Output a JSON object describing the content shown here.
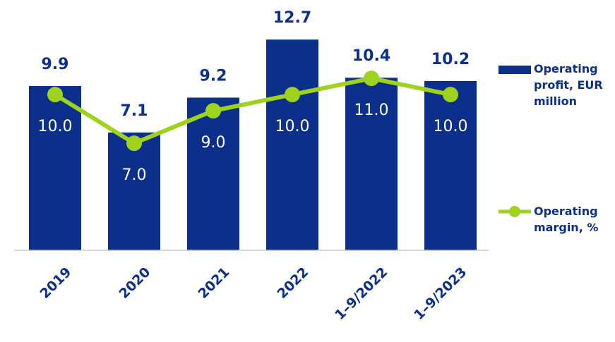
{
  "chart_data": {
    "type": "bar_line",
    "categories": [
      "2019",
      "2020",
      "2021",
      "2022",
      "1–9/2022",
      "1–9/2023"
    ],
    "series": [
      {
        "name": "Operating profit, EUR million",
        "type": "bar",
        "color": "#0b2f8a",
        "values": [
          9.9,
          7.1,
          9.2,
          12.7,
          10.4,
          10.2
        ]
      },
      {
        "name": "Operating margin, %",
        "type": "line",
        "axis": "y2",
        "color": "#9fd21e",
        "values": [
          10.0,
          7.0,
          9.0,
          10.0,
          11.0,
          10.0
        ],
        "value_labels": [
          "10.0",
          "7.0",
          "9.0",
          "10.0",
          "11.0",
          "10.0"
        ]
      }
    ],
    "ylim": [
      0,
      13
    ],
    "y2lim": [
      0.4,
      13.7
    ],
    "legend": "right",
    "grid": false
  }
}
